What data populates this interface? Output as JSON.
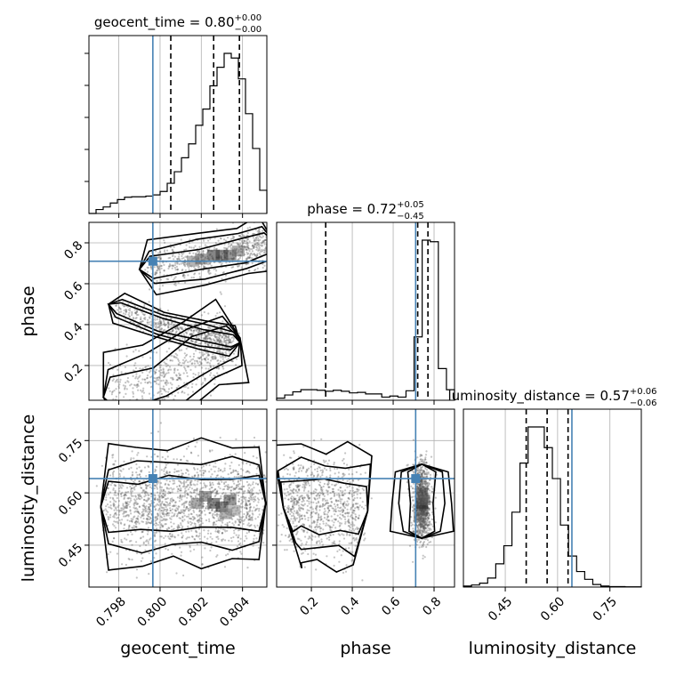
{
  "chart_data": {
    "type": "corner",
    "truth_color": "#4682b4",
    "parameters": [
      {
        "name": "geocent_time",
        "axis_label": "geocent_time",
        "title": {
          "main": "geocent_time = 0.80",
          "sup": "+0.00",
          "sub": "−0.00"
        },
        "range": [
          0.79655,
          0.80518
        ],
        "ticks": [
          0.798,
          0.8,
          0.802,
          0.804
        ],
        "tick_labels": [
          "0.798",
          "0.800",
          "0.802",
          "0.804"
        ],
        "truth": 0.79965,
        "quantiles": [
          0.80052,
          0.8026,
          0.80385
        ],
        "histogram": [
          0.0,
          0.17,
          0.28,
          0.45,
          0.6,
          0.7,
          0.72,
          0.72,
          0.75,
          0.8,
          0.95,
          1.3,
          1.8,
          2.4,
          3.0,
          3.8,
          4.5,
          5.5,
          6.3,
          6.9,
          6.7,
          5.8,
          4.3,
          2.8,
          1.0
        ]
      },
      {
        "name": "phase",
        "axis_label": "phase",
        "title": {
          "main": "phase = 0.72",
          "sup": "+0.05",
          "sub": "−0.45"
        },
        "range": [
          0.03,
          0.9
        ],
        "ticks": [
          0.2,
          0.4,
          0.6,
          0.8
        ],
        "tick_labels": [
          "0.2",
          "0.4",
          "0.6",
          "0.8"
        ],
        "truth": 0.71,
        "quantiles": [
          0.27,
          0.72,
          0.77
        ],
        "histogram": [
          0.04,
          0.1,
          0.16,
          0.2,
          0.2,
          0.19,
          0.17,
          0.19,
          0.17,
          0.14,
          0.15,
          0.12,
          0.12,
          0.06,
          0.08,
          0.06,
          0.18,
          1.2,
          3.03,
          3.0,
          0.6,
          0.2
        ]
      },
      {
        "name": "luminosity_distance",
        "axis_label": "luminosity_distance",
        "title": {
          "main": "luminosity_distance = 0.57",
          "sup": "+0.06",
          "sub": "−0.06"
        },
        "range": [
          0.33,
          0.84
        ],
        "ticks": [
          0.45,
          0.6,
          0.75
        ],
        "tick_labels": [
          "0.45",
          "0.60",
          "0.75"
        ],
        "truth": 0.641,
        "quantiles": [
          0.51,
          0.57,
          0.63
        ],
        "histogram": [
          0.04,
          0.08,
          0.15,
          0.35,
          0.9,
          1.6,
          2.9,
          4.8,
          6.2,
          6.2,
          5.4,
          4.2,
          2.4,
          1.2,
          0.6,
          0.3,
          0.1,
          0.04,
          0.02,
          0.02,
          0.01,
          0.01
        ]
      }
    ],
    "pairs": [
      {
        "x": "geocent_time",
        "y": "phase",
        "modes": [
          {
            "path": [
              [
                0.7978,
                0.06
              ],
              [
                0.8,
                0.12
              ],
              [
                0.802,
                0.26
              ],
              [
                0.8035,
                0.32
              ]
            ],
            "width": 0.14,
            "n": 650
          },
          {
            "path": [
              [
                0.8035,
                0.32
              ],
              [
                0.802,
                0.35
              ],
              [
                0.8,
                0.4
              ],
              [
                0.798,
                0.48
              ]
            ],
            "width": 0.05,
            "n": 520
          },
          {
            "path": [
              [
                0.7996,
                0.68
              ],
              [
                0.802,
                0.72
              ],
              [
                0.804,
                0.76
              ],
              [
                0.8052,
                0.8
              ]
            ],
            "width": 0.09,
            "n": 700
          }
        ],
        "dense": [
          [
            0.8026,
            0.74
          ],
          [
            0.803,
            0.74
          ],
          [
            0.8034,
            0.74
          ],
          [
            0.802,
            0.72
          ],
          [
            0.8038,
            0.76
          ],
          [
            0.8016,
            0.71
          ]
        ]
      },
      {
        "x": "geocent_time",
        "y": "luminosity_distance",
        "modes": [
          {
            "path": [
              [
                0.7975,
                0.56
              ],
              [
                0.799,
                0.56
              ],
              [
                0.8005,
                0.57
              ],
              [
                0.802,
                0.57
              ],
              [
                0.8035,
                0.57
              ],
              [
                0.8048,
                0.57
              ]
            ],
            "width": 0.12,
            "n": 1800
          }
        ],
        "dense": [
          [
            0.8026,
            0.57
          ],
          [
            0.803,
            0.56
          ],
          [
            0.8034,
            0.58
          ],
          [
            0.8022,
            0.59
          ],
          [
            0.8018,
            0.57
          ],
          [
            0.8032,
            0.54
          ],
          [
            0.8036,
            0.55
          ]
        ]
      },
      {
        "x": "phase",
        "y": "luminosity_distance",
        "modes": [
          {
            "path": [
              [
                0.08,
                0.56
              ],
              [
                0.15,
                0.57
              ],
              [
                0.25,
                0.56
              ],
              [
                0.35,
                0.56
              ],
              [
                0.45,
                0.55
              ]
            ],
            "width": 0.12,
            "n": 900
          },
          {
            "path": [
              [
                0.74,
                0.49
              ],
              [
                0.74,
                0.57
              ],
              [
                0.74,
                0.66
              ]
            ],
            "width": 0.06,
            "n": 1000
          }
        ],
        "dense": [
          [
            0.74,
            0.57
          ],
          [
            0.74,
            0.55
          ],
          [
            0.74,
            0.6
          ],
          [
            0.75,
            0.58
          ],
          [
            0.73,
            0.53
          ]
        ]
      }
    ]
  }
}
